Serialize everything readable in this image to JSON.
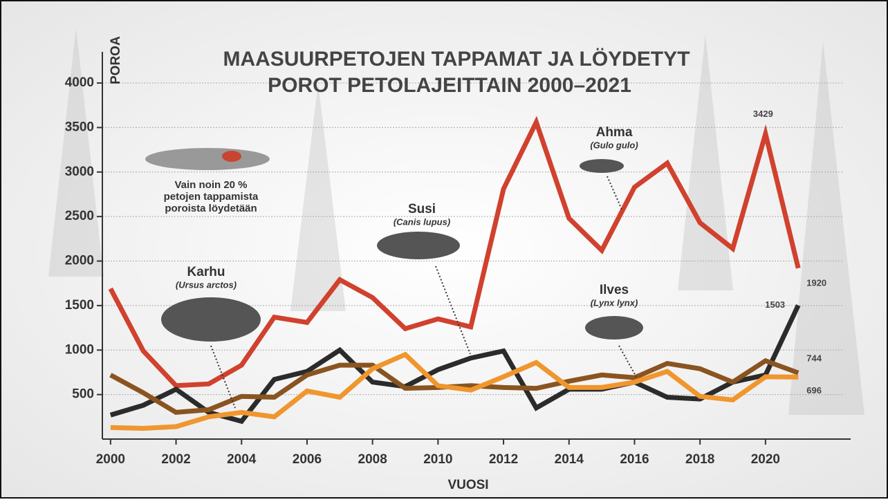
{
  "chart_data": {
    "type": "line",
    "title": [
      "MAASUURPETOJEN TAPPAMAT JA LÖYDETYT",
      "POROT PETOLAJEITTAIN 2000–2021"
    ],
    "ylabel": "POROA",
    "xlabel": "VUOSI",
    "note": [
      "Vain noin 20 %",
      "petojen tappamista",
      "poroista löydetään"
    ],
    "x": [
      2000,
      2001,
      2002,
      2003,
      2004,
      2005,
      2006,
      2007,
      2008,
      2009,
      2010,
      2011,
      2012,
      2013,
      2014,
      2015,
      2016,
      2017,
      2018,
      2019,
      2020,
      2021
    ],
    "xlim": [
      1999.75,
      2022.6
    ],
    "xticks": [
      2000,
      2002,
      2004,
      2006,
      2008,
      2010,
      2012,
      2014,
      2016,
      2018,
      2020
    ],
    "ylim": [
      0,
      4350
    ],
    "yticks": [
      500,
      1000,
      1500,
      2000,
      2500,
      3000,
      3500,
      4000
    ],
    "grid": true,
    "series": [
      {
        "name": "Ahma",
        "latin": "(Gulo gulo)",
        "color": "#d0412e",
        "values": [
          1690,
          990,
          600,
          620,
          830,
          1370,
          1310,
          1790,
          1590,
          1240,
          1350,
          1260,
          2810,
          3560,
          2480,
          2120,
          2830,
          3100,
          2430,
          2140,
          3429,
          1920
        ],
        "value_labels": [
          null,
          null,
          null,
          null,
          null,
          null,
          null,
          null,
          null,
          null,
          null,
          null,
          null,
          null,
          null,
          null,
          null,
          null,
          null,
          null,
          "3429",
          "1920"
        ]
      },
      {
        "name": "Ilves",
        "latin": "(Lynx lynx)",
        "color": "#2b2b2b",
        "values": [
          270,
          380,
          560,
          300,
          200,
          670,
          760,
          1000,
          640,
          590,
          780,
          910,
          990,
          350,
          560,
          560,
          640,
          470,
          450,
          640,
          720,
          1503
        ],
        "value_labels": [
          null,
          null,
          null,
          null,
          null,
          null,
          null,
          null,
          null,
          null,
          null,
          null,
          null,
          null,
          null,
          null,
          null,
          null,
          null,
          null,
          null,
          "1503"
        ]
      },
      {
        "name": "Karhu",
        "latin": "(Ursus arctos)",
        "color": "#8a5420",
        "values": [
          720,
          520,
          300,
          330,
          480,
          470,
          720,
          830,
          830,
          570,
          580,
          600,
          580,
          570,
          650,
          720,
          690,
          850,
          790,
          640,
          880,
          744
        ],
        "value_labels": [
          null,
          null,
          null,
          null,
          null,
          null,
          null,
          null,
          null,
          null,
          null,
          null,
          null,
          null,
          null,
          null,
          null,
          null,
          null,
          null,
          null,
          "744"
        ]
      },
      {
        "name": "Susi",
        "latin": "(Canis lupus)",
        "color": "#f0962e",
        "values": [
          130,
          120,
          140,
          250,
          300,
          250,
          540,
          470,
          790,
          950,
          600,
          550,
          700,
          860,
          580,
          580,
          640,
          760,
          480,
          440,
          700,
          696
        ],
        "value_labels": [
          null,
          null,
          null,
          null,
          null,
          null,
          null,
          null,
          null,
          null,
          null,
          null,
          null,
          null,
          null,
          null,
          null,
          null,
          null,
          null,
          null,
          "696"
        ]
      }
    ]
  }
}
